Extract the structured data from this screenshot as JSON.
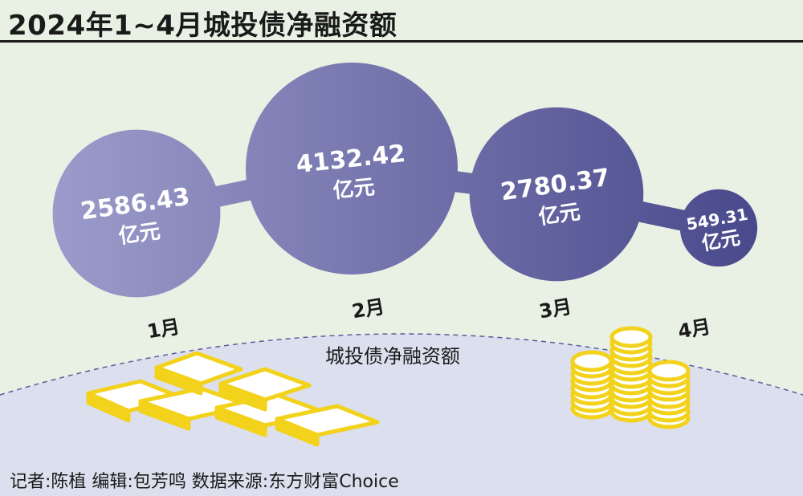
{
  "title": "2024年1~4月城投债净融资额",
  "chart_data": {
    "type": "bubble",
    "title": "2024年1~4月城投债净融资额",
    "categories": [
      "1月",
      "2月",
      "3月",
      "4月"
    ],
    "values": [
      2586.43,
      4132.42,
      2780.37,
      549.31
    ],
    "value_labels": [
      "2586.43",
      "4132.42",
      "2780.37",
      "549.31"
    ],
    "unit": "亿元",
    "series": [
      {
        "name": "城投债净融资额",
        "values": [
          2586.43,
          4132.42,
          2780.37,
          549.31
        ]
      }
    ]
  },
  "legend_label": "城投债净融资额",
  "credits": "记者:陈植   编辑:包芳鸣   数据来源:东方财富Choice",
  "colors": {
    "background": "#e9f1e4",
    "ground": "#dcdfee",
    "bubble_light": "#9a9ac8",
    "bubble_dark": "#4a4c8e",
    "gold": "#f2d21a"
  }
}
